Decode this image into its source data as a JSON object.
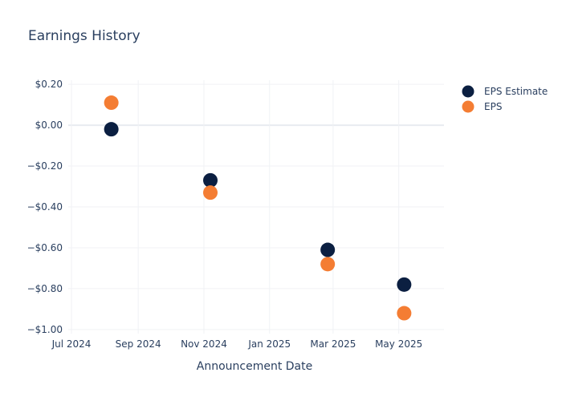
{
  "chart_data": {
    "type": "scatter",
    "title": "Earnings History",
    "xlabel": "Announcement Date",
    "ylabel": "",
    "x_ticks": [
      {
        "date": "2024-07-01",
        "label": "Jul 2024"
      },
      {
        "date": "2024-09-01",
        "label": "Sep 2024"
      },
      {
        "date": "2024-11-01",
        "label": "Nov 2024"
      },
      {
        "date": "2025-01-01",
        "label": "Jan 2025"
      },
      {
        "date": "2025-03-01",
        "label": "Mar 2025"
      },
      {
        "date": "2025-05-01",
        "label": "May 2025"
      }
    ],
    "y_ticks": [
      {
        "value": 0.2,
        "label": "$0.20"
      },
      {
        "value": 0.0,
        "label": "$0.00"
      },
      {
        "value": -0.2,
        "label": "−$0.20"
      },
      {
        "value": -0.4,
        "label": "−$0.40"
      },
      {
        "value": -0.6,
        "label": "−$0.60"
      },
      {
        "value": -0.8,
        "label": "−$0.80"
      },
      {
        "value": -1.0,
        "label": "−$1.00"
      }
    ],
    "xlim": [
      "2024-06-28",
      "2025-06-12"
    ],
    "ylim": [
      -1.02,
      0.22
    ],
    "grid": true,
    "legend_position": "top-right",
    "series": [
      {
        "name": "EPS Estimate",
        "color": "#0b1f41",
        "points": [
          {
            "x": "2024-08-07",
            "y": -0.02
          },
          {
            "x": "2024-11-07",
            "y": -0.27
          },
          {
            "x": "2025-02-24",
            "y": -0.61
          },
          {
            "x": "2025-05-06",
            "y": -0.78
          }
        ]
      },
      {
        "name": "EPS",
        "color": "#f47d33",
        "points": [
          {
            "x": "2024-08-07",
            "y": 0.11
          },
          {
            "x": "2024-11-07",
            "y": -0.33
          },
          {
            "x": "2025-02-24",
            "y": -0.68
          },
          {
            "x": "2025-05-06",
            "y": -0.92
          }
        ]
      }
    ]
  }
}
